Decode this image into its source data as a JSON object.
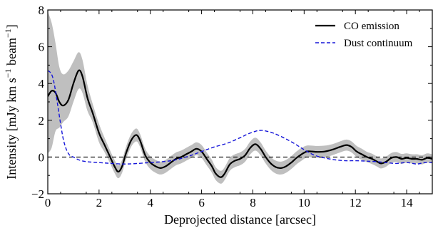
{
  "chart_data": {
    "type": "line",
    "title": "",
    "xlabel": "Deprojected distance [arcsec]",
    "ylabel_parts": [
      "Intensity [mJy km s",
      "−1",
      " beam",
      "−1",
      "]"
    ],
    "xlim": [
      0,
      15
    ],
    "ylim": [
      -2,
      8
    ],
    "xticks": [
      0,
      2,
      4,
      6,
      8,
      10,
      12,
      14
    ],
    "yticks": [
      -2,
      0,
      2,
      4,
      6,
      8
    ],
    "xtick_labels": [
      "0",
      "2",
      "4",
      "6",
      "8",
      "10",
      "12",
      "14"
    ],
    "ytick_labels": [
      "−2",
      "0",
      "2",
      "4",
      "6",
      "8"
    ],
    "grid": false,
    "legend_position": "top-right",
    "zero_line": 0,
    "series": [
      {
        "name": "CO emission",
        "color": "#000000",
        "style": "solid",
        "x": [
          0,
          0.15,
          0.3,
          0.45,
          0.6,
          0.8,
          1.0,
          1.2,
          1.35,
          1.55,
          1.75,
          2.0,
          2.2,
          2.4,
          2.6,
          2.75,
          2.9,
          3.05,
          3.25,
          3.45,
          3.6,
          3.8,
          4.0,
          4.2,
          4.4,
          4.6,
          4.8,
          5.0,
          5.2,
          5.4,
          5.6,
          5.8,
          6.0,
          6.2,
          6.4,
          6.55,
          6.75,
          6.9,
          7.1,
          7.3,
          7.5,
          7.7,
          7.9,
          8.1,
          8.3,
          8.5,
          8.7,
          8.9,
          9.1,
          9.3,
          9.5,
          9.7,
          9.9,
          10.1,
          10.3,
          10.5,
          10.8,
          11.1,
          11.4,
          11.65,
          11.85,
          12.05,
          12.25,
          12.45,
          12.65,
          12.85,
          13.0,
          13.2,
          13.4,
          13.6,
          13.8,
          14.0,
          14.2,
          14.4,
          14.6,
          14.8,
          15.0
        ],
        "y": [
          3.3,
          3.6,
          3.5,
          3.0,
          2.8,
          3.1,
          4.0,
          4.7,
          4.4,
          3.2,
          2.4,
          1.3,
          0.7,
          0.1,
          -0.5,
          -0.8,
          -0.5,
          0.2,
          0.9,
          1.2,
          0.9,
          0.1,
          -0.3,
          -0.5,
          -0.6,
          -0.5,
          -0.3,
          -0.1,
          0.0,
          0.15,
          0.3,
          0.45,
          0.3,
          -0.1,
          -0.5,
          -0.9,
          -1.1,
          -0.9,
          -0.4,
          -0.2,
          -0.1,
          0.1,
          0.5,
          0.7,
          0.45,
          0.0,
          -0.35,
          -0.55,
          -0.6,
          -0.5,
          -0.3,
          -0.05,
          0.15,
          0.3,
          0.3,
          0.28,
          0.3,
          0.4,
          0.55,
          0.65,
          0.55,
          0.3,
          0.15,
          0.0,
          -0.1,
          -0.25,
          -0.35,
          -0.25,
          -0.05,
          0.0,
          -0.1,
          -0.05,
          -0.1,
          -0.1,
          -0.15,
          -0.05,
          -0.1
        ]
      },
      {
        "name": "Dust continuum",
        "color": "#1515d9",
        "style": "dashed",
        "x": [
          0,
          0.1,
          0.2,
          0.3,
          0.4,
          0.5,
          0.6,
          0.7,
          0.8,
          0.9,
          1.0,
          1.2,
          1.5,
          2.0,
          2.5,
          3.0,
          3.5,
          4.0,
          4.5,
          5.0,
          5.5,
          6.0,
          6.5,
          7.0,
          7.5,
          7.8,
          8.1,
          8.3,
          8.5,
          8.8,
          9.2,
          9.6,
          10.0,
          10.4,
          10.8,
          11.2,
          11.6,
          12.0,
          12.4,
          12.8,
          13.2,
          13.6,
          14.0,
          14.4,
          14.7,
          15.0
        ],
        "y": [
          4.7,
          4.6,
          4.3,
          3.6,
          2.7,
          1.8,
          1.0,
          0.5,
          0.2,
          0.05,
          0.0,
          -0.15,
          -0.25,
          -0.3,
          -0.35,
          -0.38,
          -0.35,
          -0.3,
          -0.25,
          -0.15,
          0.05,
          0.3,
          0.55,
          0.75,
          1.05,
          1.25,
          1.4,
          1.45,
          1.42,
          1.3,
          1.05,
          0.75,
          0.4,
          0.1,
          -0.05,
          -0.15,
          -0.2,
          -0.2,
          -0.22,
          -0.25,
          -0.3,
          -0.35,
          -0.3,
          -0.38,
          -0.3,
          -0.3
        ]
      }
    ],
    "uncertainty_band": {
      "series": "CO emission",
      "color": "#bfbfbf",
      "x": [
        0,
        0.15,
        0.3,
        0.45,
        0.6,
        0.8,
        1.0,
        1.2,
        1.35,
        1.55,
        1.75,
        2.0,
        2.2,
        2.4,
        2.6,
        2.75,
        2.9,
        3.05,
        3.25,
        3.45,
        3.6,
        3.8,
        4.0,
        4.2,
        4.4,
        4.6,
        4.8,
        5.0,
        5.2,
        5.4,
        5.6,
        5.8,
        6.0,
        6.2,
        6.4,
        6.55,
        6.75,
        6.9,
        7.1,
        7.3,
        7.5,
        7.7,
        7.9,
        8.1,
        8.3,
        8.5,
        8.7,
        8.9,
        9.1,
        9.3,
        9.5,
        9.7,
        9.9,
        10.1,
        10.3,
        10.5,
        10.8,
        11.1,
        11.4,
        11.65,
        11.85,
        12.05,
        12.25,
        12.45,
        12.65,
        12.85,
        13.0,
        13.2,
        13.4,
        13.6,
        13.8,
        14.0,
        14.2,
        14.4,
        14.6,
        14.8,
        15.0
      ],
      "upper": [
        7.9,
        7.3,
        6.2,
        4.9,
        4.5,
        4.7,
        5.2,
        5.7,
        5.3,
        3.9,
        2.9,
        1.8,
        1.1,
        0.45,
        -0.15,
        -0.45,
        -0.15,
        0.55,
        1.25,
        1.55,
        1.25,
        0.45,
        0.05,
        -0.15,
        -0.25,
        -0.15,
        0.05,
        0.25,
        0.35,
        0.5,
        0.65,
        0.8,
        0.65,
        0.25,
        -0.15,
        -0.55,
        -0.75,
        -0.55,
        -0.05,
        0.15,
        0.25,
        0.45,
        0.85,
        1.05,
        0.8,
        0.35,
        0.0,
        -0.2,
        -0.25,
        -0.15,
        0.05,
        0.3,
        0.5,
        0.62,
        0.62,
        0.6,
        0.62,
        0.7,
        0.85,
        0.95,
        0.85,
        0.6,
        0.45,
        0.28,
        0.18,
        0.02,
        -0.08,
        0.02,
        0.22,
        0.27,
        0.17,
        0.2,
        0.15,
        0.15,
        0.1,
        0.2,
        0.15
      ],
      "lower": [
        0.2,
        0.5,
        1.4,
        1.6,
        1.9,
        2.2,
        3.0,
        3.7,
        3.5,
        2.5,
        1.9,
        0.8,
        0.3,
        -0.25,
        -0.85,
        -1.15,
        -0.85,
        -0.15,
        0.55,
        0.85,
        0.55,
        -0.25,
        -0.65,
        -0.85,
        -0.95,
        -0.85,
        -0.65,
        -0.45,
        -0.35,
        -0.2,
        -0.05,
        0.1,
        -0.05,
        -0.45,
        -0.85,
        -1.25,
        -1.45,
        -1.25,
        -0.75,
        -0.55,
        -0.45,
        -0.25,
        0.15,
        0.35,
        0.1,
        -0.35,
        -0.7,
        -0.9,
        -0.95,
        -0.85,
        -0.65,
        -0.4,
        -0.2,
        -0.02,
        -0.02,
        -0.04,
        -0.02,
        0.1,
        0.25,
        0.35,
        0.25,
        0.0,
        -0.15,
        -0.28,
        -0.38,
        -0.52,
        -0.62,
        -0.52,
        -0.32,
        -0.27,
        -0.37,
        -0.3,
        -0.35,
        -0.35,
        -0.4,
        -0.3,
        -0.35
      ]
    }
  }
}
